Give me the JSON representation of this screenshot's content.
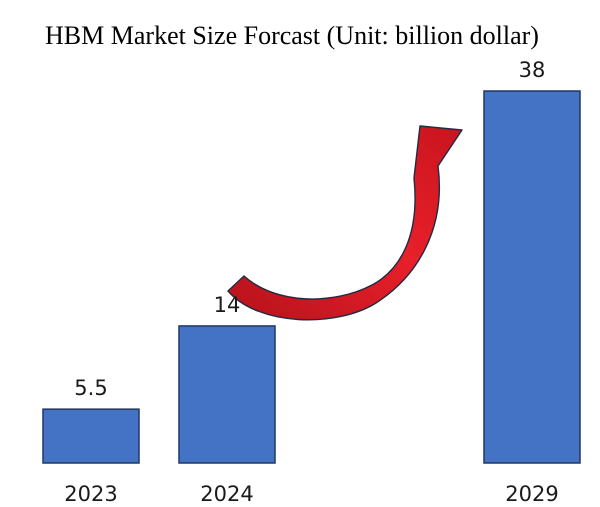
{
  "chart_data": {
    "type": "bar",
    "title": "HBM Market Size Forcast (Unit: billion dollar)",
    "categories": [
      "2023",
      "2024",
      "2029"
    ],
    "values": [
      5.5,
      14,
      38
    ],
    "data_labels": [
      "5.5",
      "14",
      "38"
    ],
    "ylim": [
      0,
      38
    ],
    "grid": false,
    "legend": "none",
    "bar_color": "#4472c4",
    "bar_edge_color": "#1f3864",
    "annotation": {
      "type": "curved-arrow",
      "from_category": "2024",
      "to_category": "2029",
      "color": "#e01a22"
    }
  }
}
